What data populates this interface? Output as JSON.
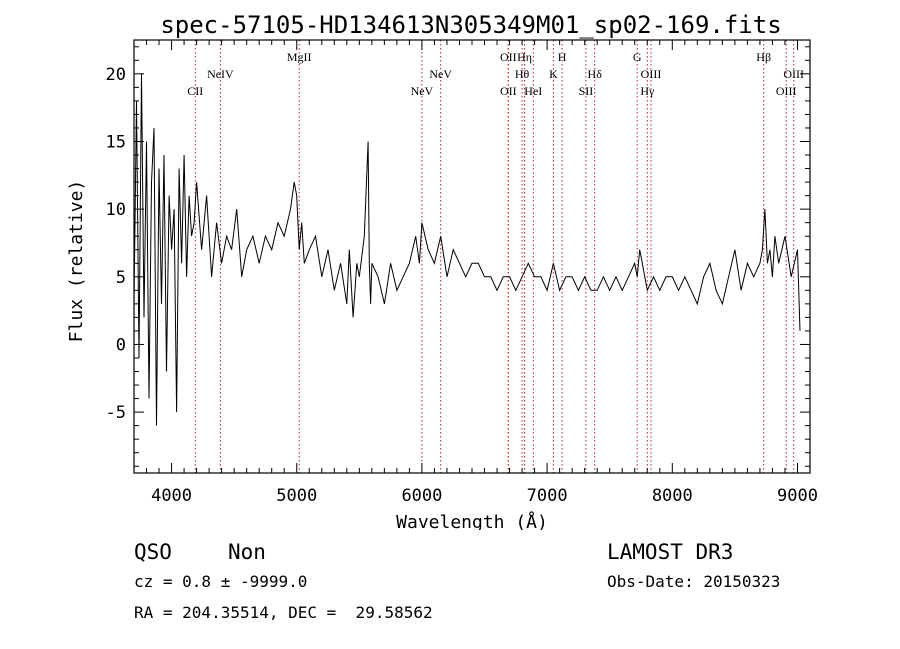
{
  "chart_data": {
    "type": "line",
    "title": "spec-57105-HD134613N305349M01_sp02-169.fits",
    "xlabel": "Wavelength (Å)",
    "ylabel": "Flux (relative)",
    "xlim": [
      3700,
      9100
    ],
    "ylim": [
      -9.5,
      22.5
    ],
    "xticks": [
      4000,
      5000,
      6000,
      7000,
      8000,
      9000
    ],
    "yticks": [
      -5,
      0,
      5,
      10,
      15,
      20
    ],
    "grid": false,
    "series": [
      {
        "name": "flux",
        "x": [
          3700,
          3720,
          3740,
          3760,
          3780,
          3800,
          3820,
          3840,
          3860,
          3880,
          3900,
          3920,
          3940,
          3960,
          3980,
          4000,
          4020,
          4040,
          4060,
          4080,
          4100,
          4120,
          4140,
          4160,
          4180,
          4200,
          4240,
          4280,
          4320,
          4360,
          4400,
          4440,
          4480,
          4520,
          4560,
          4600,
          4650,
          4700,
          4750,
          4800,
          4850,
          4900,
          4950,
          4980,
          5000,
          5020,
          5040,
          5060,
          5100,
          5150,
          5200,
          5250,
          5300,
          5350,
          5400,
          5420,
          5450,
          5480,
          5500,
          5540,
          5570,
          5580,
          5590,
          5600,
          5650,
          5700,
          5750,
          5800,
          5850,
          5900,
          5950,
          5980,
          6000,
          6050,
          6100,
          6150,
          6200,
          6250,
          6300,
          6350,
          6400,
          6450,
          6500,
          6550,
          6600,
          6650,
          6700,
          6750,
          6800,
          6850,
          6900,
          6950,
          7000,
          7050,
          7100,
          7150,
          7200,
          7250,
          7300,
          7350,
          7400,
          7450,
          7500,
          7550,
          7600,
          7650,
          7700,
          7720,
          7740,
          7760,
          7780,
          7800,
          7850,
          7900,
          7950,
          8000,
          8050,
          8100,
          8150,
          8200,
          8250,
          8300,
          8350,
          8400,
          8450,
          8500,
          8550,
          8600,
          8650,
          8700,
          8720,
          8740,
          8760,
          8780,
          8800,
          8820,
          8850,
          8900,
          8950,
          9000,
          9020
        ],
        "y": [
          3,
          18,
          -1,
          20,
          2,
          15,
          -4,
          12,
          16,
          -6,
          13,
          3,
          14,
          -2,
          11,
          7,
          10,
          -5,
          13,
          6,
          14,
          5,
          11,
          8,
          9,
          12,
          7,
          11,
          5,
          9,
          6,
          8,
          7,
          10,
          5,
          7,
          8,
          6,
          8,
          7,
          9,
          8,
          10,
          12,
          11,
          7,
          9,
          6,
          7,
          8,
          5,
          7,
          4,
          6,
          3,
          7,
          2,
          6,
          5,
          8,
          15,
          6,
          3,
          6,
          5,
          3,
          6,
          4,
          5,
          6,
          8,
          6,
          9,
          7,
          6,
          8,
          5,
          7,
          6,
          5,
          6,
          6,
          5,
          5,
          4,
          5,
          5,
          4,
          5,
          6,
          5,
          5,
          4,
          6,
          4,
          5,
          5,
          4,
          5,
          4,
          4,
          5,
          4,
          5,
          4,
          5,
          6,
          5,
          7,
          6,
          5,
          4,
          5,
          4,
          5,
          5,
          4,
          5,
          4,
          3,
          5,
          6,
          4,
          3,
          5,
          7,
          4,
          6,
          5,
          6,
          7,
          10,
          6,
          7,
          5,
          8,
          6,
          8,
          5,
          7,
          1
        ]
      }
    ],
    "lines": [
      {
        "name": "CII",
        "x": 4190,
        "row": 3
      },
      {
        "name": "NeIV",
        "x": 4390,
        "row": 2
      },
      {
        "name": "MgII",
        "x": 5020,
        "row": 1
      },
      {
        "name": "NeV",
        "x": 6000,
        "row": 3
      },
      {
        "name": "NeV",
        "x": 6150,
        "row": 2
      },
      {
        "name": "OII",
        "x": 6690,
        "row": 1
      },
      {
        "name": "OII",
        "x": 6690,
        "row": 3
      },
      {
        "name": "Hη",
        "x": 6820,
        "row": 1
      },
      {
        "name": "Hθ",
        "x": 6800,
        "row": 2
      },
      {
        "name": "HeI",
        "x": 6890,
        "row": 3
      },
      {
        "name": "H",
        "x": 7120,
        "row": 1
      },
      {
        "name": "K",
        "x": 7050,
        "row": 2
      },
      {
        "name": "SII",
        "x": 7310,
        "row": 3
      },
      {
        "name": "Hδ",
        "x": 7380,
        "row": 2
      },
      {
        "name": "G",
        "x": 7720,
        "row": 1
      },
      {
        "name": "OIII",
        "x": 7830,
        "row": 2
      },
      {
        "name": "Hγ",
        "x": 7800,
        "row": 3
      },
      {
        "name": "Hβ",
        "x": 8730,
        "row": 1
      },
      {
        "name": "OIII",
        "x": 8910,
        "row": 3
      },
      {
        "name": "OIII",
        "x": 8970,
        "row": 2
      }
    ],
    "colors": {
      "spectrum": "#000000",
      "line_marker": "#b22222"
    }
  },
  "info": {
    "class": "QSO",
    "subclass": "Non",
    "cz": "cz = 0.8 ± -9999.0",
    "radec": "RA = 204.35514, DEC =  29.58562",
    "survey": "LAMOST DR3",
    "obsdate": "Obs-Date: 20150323"
  }
}
